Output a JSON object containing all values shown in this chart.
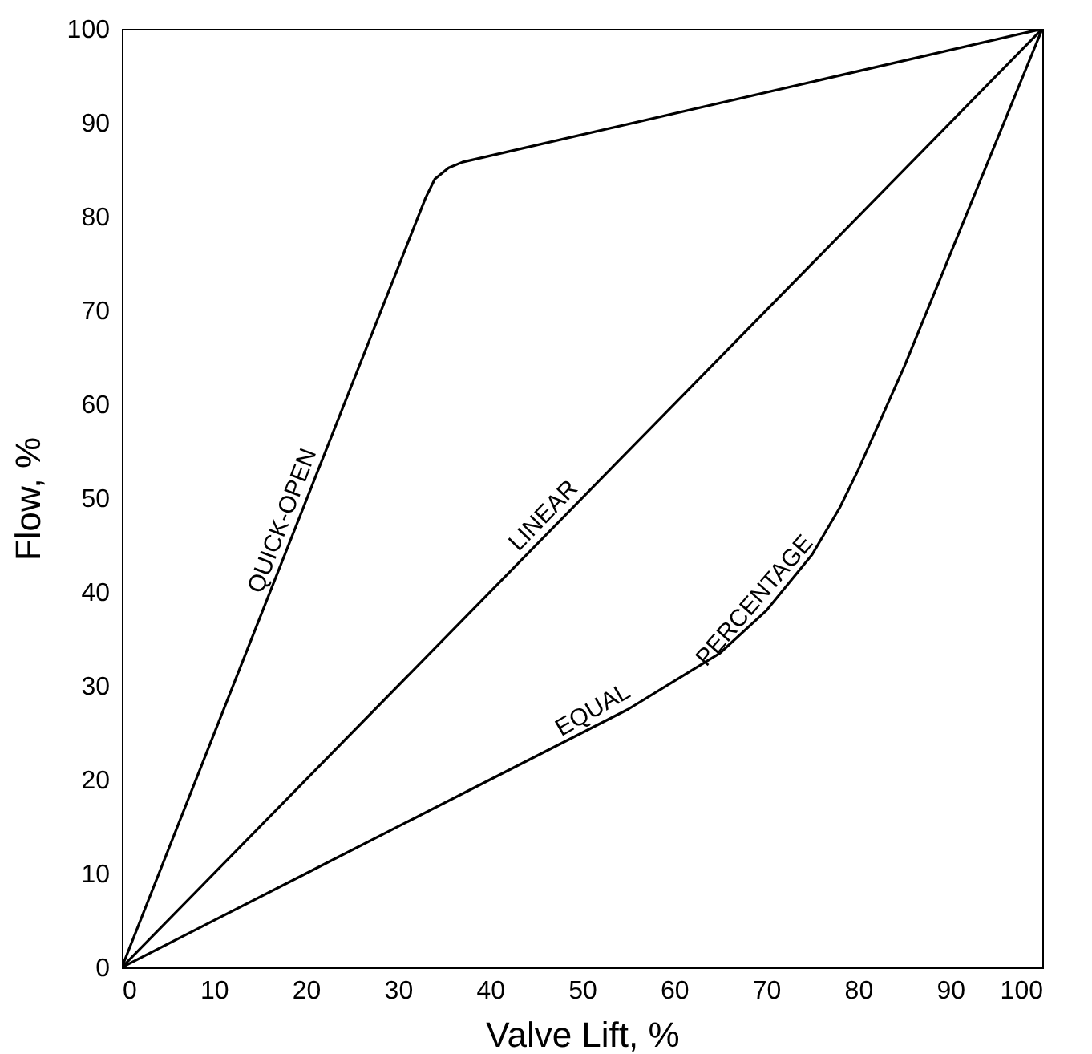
{
  "chart_data": {
    "type": "line",
    "xlabel": "Valve Lift, %",
    "ylabel": "Flow, %",
    "xlim": [
      0,
      100
    ],
    "ylim": [
      0,
      100
    ],
    "xticks": [
      0,
      10,
      20,
      30,
      40,
      50,
      60,
      70,
      80,
      90,
      100
    ],
    "yticks": [
      0,
      10,
      20,
      30,
      40,
      50,
      60,
      70,
      80,
      90,
      100
    ],
    "grid": false,
    "legend": false,
    "series": [
      {
        "color": "#000000",
        "x": [
          0,
          33,
          34,
          35.5,
          37,
          100
        ],
        "values": [
          0,
          82,
          84,
          85.2,
          85.8,
          100
        ]
      },
      {
        "color": "#000000",
        "x": [
          0,
          100
        ],
        "values": [
          0,
          100
        ]
      },
      {
        "color": "#000000",
        "x": [
          0,
          20,
          40,
          50,
          55,
          60,
          65,
          70,
          75,
          78,
          80,
          85,
          90,
          95,
          100
        ],
        "values": [
          0,
          10,
          20,
          25,
          27.5,
          30.5,
          33.5,
          38,
          44,
          49,
          53,
          64,
          76,
          88,
          100
        ]
      }
    ],
    "annotations": [
      {
        "text": "QUICK-OPEN",
        "x": 19,
        "y": 47
      },
      {
        "text": "LINEAR",
        "x": 47,
        "y": 47
      },
      {
        "text": "EQUAL",
        "x": 52,
        "y": 26
      },
      {
        "text": "PERCENTAGE",
        "x": 70,
        "y": 38
      }
    ]
  }
}
